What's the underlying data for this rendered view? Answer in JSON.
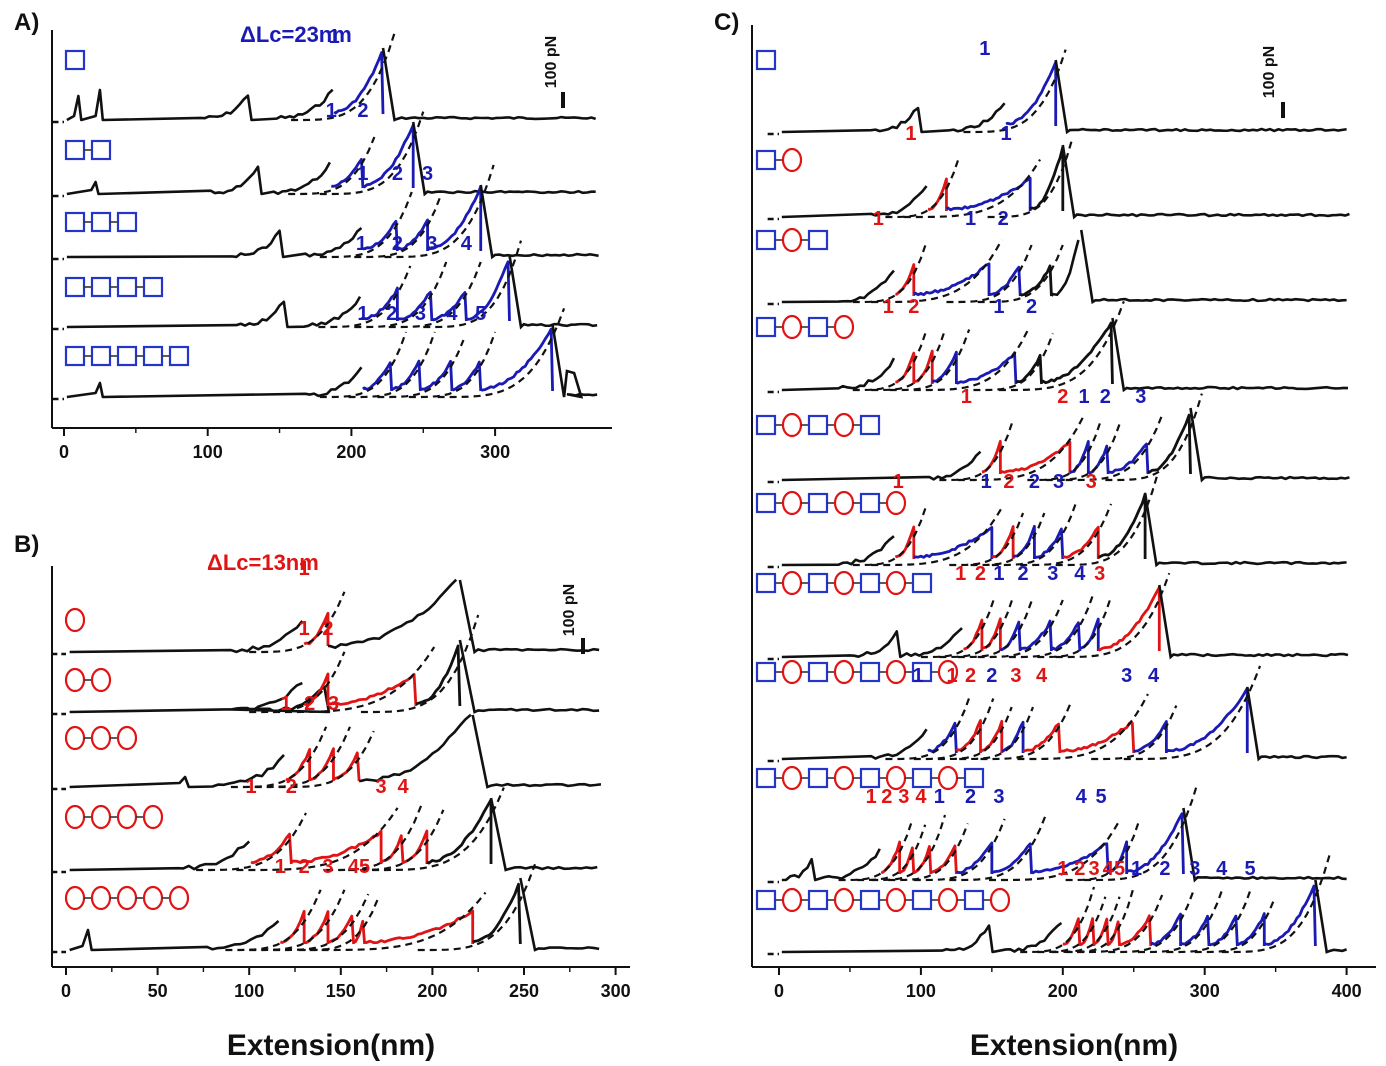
{
  "colors": {
    "trace": "#111111",
    "blue": "#1a1ab4",
    "red": "#e01414",
    "domain_blue": "#2336c8",
    "domain_red": "#e01414"
  },
  "chart_data": [
    {
      "type": "line",
      "panel_label": "A)",
      "annotation": "ΔLc=23nm",
      "annotation_color": "blue",
      "scale_bar_label": "100 pN",
      "xlabel": "",
      "xlim": [
        -5,
        380
      ],
      "xticks": [
        0,
        100,
        200,
        300
      ],
      "series": [
        {
          "constructs": "B",
          "rupture": 222,
          "leading_peaks": [
            {
              "x": 10,
              "h": 22
            },
            {
              "x": 25,
              "h": 28
            }
          ],
          "event_xs": [],
          "peak_xs": [
            130
          ],
          "unfold_xs": [
            188,
            222
          ],
          "colors": [
            "blue"
          ],
          "labels": [
            "1"
          ]
        },
        {
          "constructs": "BB",
          "rupture": 243,
          "leading_peaks": [
            {
              "x": 22,
              "h": 10
            }
          ],
          "event_xs": [],
          "peak_xs": [
            137
          ],
          "unfold_xs": [
            186,
            208,
            243
          ],
          "colors": [
            "blue",
            "blue"
          ],
          "labels": [
            "1",
            "2"
          ]
        },
        {
          "constructs": "BBB",
          "rupture": 290,
          "leading_peaks": [],
          "event_xs": [],
          "peak_xs": [
            152
          ],
          "unfold_xs": [
            208,
            232,
            253,
            290
          ],
          "colors": [
            "blue",
            "blue",
            "blue"
          ],
          "labels": [
            "1",
            "2",
            "3"
          ]
        },
        {
          "constructs": "BBBB",
          "rupture": 310,
          "leading_peaks": [],
          "event_xs": [],
          "peak_xs": [
            155
          ],
          "unfold_xs": [
            207,
            232,
            256,
            280,
            310
          ],
          "colors": [
            "blue",
            "blue",
            "blue",
            "blue"
          ],
          "labels": [
            "1",
            "2",
            "3",
            "4"
          ]
        },
        {
          "constructs": "BBBBB",
          "rupture": 340,
          "leading_peaks": [
            {
              "x": 25,
              "h": 12
            }
          ],
          "event_xs": [],
          "peak_xs": [],
          "unfold_xs": [
            208,
            228,
            248,
            270,
            290,
            340
          ],
          "colors": [
            "blue",
            "blue",
            "blue",
            "blue",
            "blue"
          ],
          "labels": [
            "1",
            "2",
            "3",
            "4",
            "5"
          ],
          "extra_peaks": [
            {
              "x": 355,
              "h": 24
            }
          ]
        }
      ]
    },
    {
      "type": "line",
      "panel_label": "B)",
      "annotation": "ΔLc=13nm",
      "annotation_color": "red",
      "scale_bar_label": "100 pN",
      "xlabel": "Extension(nm)",
      "xlim": [
        -5,
        300
      ],
      "xticks": [
        0,
        50,
        100,
        150,
        200,
        250,
        300
      ],
      "series": [
        {
          "constructs": "R",
          "rupture": 215,
          "leading_peaks": [],
          "event_xs": [],
          "peak_xs": [],
          "unfold_xs": [
            130,
            143
          ],
          "colors": [
            "red"
          ],
          "labels": [
            "1"
          ]
        },
        {
          "constructs": "RR",
          "rupture": 215,
          "leading_peaks": [],
          "event_xs": [],
          "peak_xs": [
            143
          ],
          "unfold_xs": [
            130,
            143
          ],
          "colors": [
            "red"
          ],
          "labels": [
            "1"
          ],
          "late_unfold_xs": [
            191,
            215
          ],
          "late_colors": [
            "red"
          ],
          "late_labels": [
            "2"
          ]
        },
        {
          "constructs": "RRR",
          "rupture": 222,
          "leading_peaks": [
            {
              "x": 65,
              "h": 8
            }
          ],
          "event_xs": [],
          "peak_xs": [],
          "unfold_xs": [
            120,
            133,
            146,
            160
          ],
          "colors": [
            "red",
            "red",
            "red"
          ],
          "labels": [
            "1",
            "2",
            "3"
          ]
        },
        {
          "constructs": "RRRR",
          "rupture": 232,
          "leading_peaks": [],
          "event_xs": [],
          "peak_xs": [],
          "unfold_xs": [
            101,
            123
          ],
          "colors": [
            "red"
          ],
          "labels": [
            "1"
          ],
          "late_unfold_xs": [
            172,
            184,
            197,
            232
          ],
          "late_colors": [
            "red",
            "red",
            "red"
          ],
          "late_labels": [
            "2",
            "3",
            "4"
          ]
        },
        {
          "constructs": "RRRRR",
          "rupture": 248,
          "leading_peaks": [
            {
              "x": 12,
              "h": 18
            }
          ],
          "event_xs": [],
          "peak_xs": [],
          "unfold_xs": [
            117,
            130,
            143,
            157,
            163
          ],
          "colors": [
            "red",
            "red",
            "red",
            "red"
          ],
          "labels": [
            "1",
            "2",
            "3",
            "4"
          ],
          "late_unfold_xs": [
            222,
            248
          ],
          "late_colors": [
            "red"
          ],
          "late_labels": [
            "5"
          ]
        }
      ]
    },
    {
      "type": "line",
      "panel_label": "C)",
      "annotation": "",
      "scale_bar_label": "100 pN",
      "xlabel": "Extension(nm)",
      "xlim": [
        -20,
        410
      ],
      "xticks": [
        0,
        100,
        200,
        300,
        400
      ],
      "series": [
        {
          "constructs": "B",
          "rupture": 195,
          "peak_xs": [
            100
          ],
          "unfold_xs": [
            160,
            195
          ],
          "colors": [
            "blue"
          ],
          "labels": [
            "1"
          ],
          "label_xs": [
            145
          ]
        },
        {
          "constructs": "BR",
          "rupture": 200,
          "peak_xs": [],
          "unfold_xs": [
            105,
            118
          ],
          "colors": [
            "red"
          ],
          "labels": [
            "1"
          ],
          "label_xs": [
            93
          ],
          "late_unfold_xs": [
            177,
            200
          ],
          "late_colors": [
            "blue"
          ],
          "late_labels": [
            "1"
          ],
          "late_label_xs": [
            160
          ]
        },
        {
          "constructs": "BRB",
          "rupture": 213,
          "peak_xs": [],
          "unfold_xs": [
            82,
            95
          ],
          "colors": [
            "red"
          ],
          "labels": [
            "1"
          ],
          "label_xs": [
            70
          ],
          "late_unfold_xs": [
            148,
            170,
            192
          ],
          "late_colors": [
            "blue",
            "blue"
          ],
          "late_labels": [
            "1",
            "2"
          ],
          "late_label_xs": [
            135,
            158
          ]
        },
        {
          "constructs": "BRBR",
          "rupture": 235,
          "peak_xs": [],
          "unfold_xs": [
            82,
            95,
            108,
            125
          ],
          "colors": [
            "red",
            "red"
          ],
          "labels": [
            "1",
            "2"
          ],
          "label_xs": [
            77,
            95
          ],
          "late_unfold_xs": [
            167,
            185,
            235
          ],
          "late_colors": [
            "blue",
            "blue"
          ],
          "late_labels": [
            "1",
            "2"
          ],
          "late_label_xs": [
            155,
            178
          ]
        },
        {
          "constructs": "BRBRB",
          "rupture": 290,
          "peak_xs": [],
          "unfold_xs": [
            143,
            156
          ],
          "colors": [
            "red"
          ],
          "labels": [
            "1"
          ],
          "label_xs": [
            132
          ],
          "late_unfold_xs": [
            205,
            218,
            232,
            260,
            290
          ],
          "late_colors": [
            "red",
            "blue",
            "blue",
            "blue"
          ],
          "late_labels": [
            "2",
            "1",
            "2",
            "3"
          ],
          "late_label_xs": [
            200,
            215,
            230,
            255
          ]
        },
        {
          "constructs": "BRBRBR",
          "rupture": 258,
          "peak_xs": [],
          "unfold_xs": [
            82,
            95
          ],
          "colors": [
            "red"
          ],
          "labels": [
            "1"
          ],
          "label_xs": [
            84
          ],
          "late_unfold_xs": [
            150,
            165,
            180,
            200,
            225,
            258
          ],
          "late_colors": [
            "blue",
            "red",
            "blue",
            "blue",
            "red"
          ],
          "late_labels": [
            "1",
            "2",
            "2",
            "3",
            "3"
          ],
          "late_label_xs": [
            146,
            162,
            180,
            197,
            220
          ]
        },
        {
          "constructs": "BRBRBRB",
          "rupture": 268,
          "peak_xs": [
            85
          ],
          "unfold_xs": [
            130,
            143,
            156,
            170,
            192,
            212,
            225,
            268
          ],
          "colors": [
            "red",
            "red",
            "blue",
            "blue",
            "blue",
            "blue",
            "red"
          ],
          "labels": [
            "1",
            "2",
            "1",
            "2",
            "3",
            "4",
            "3"
          ],
          "label_xs": [
            128,
            142,
            155,
            172,
            193,
            212,
            226
          ]
        },
        {
          "constructs": "BRBRBRBR",
          "rupture": 330,
          "peak_xs": [],
          "unfold_xs": [
            105,
            125,
            142,
            157,
            172,
            198,
            250,
            273,
            330
          ],
          "colors": [
            "blue",
            "red",
            "red",
            "blue",
            "red",
            "red",
            "blue",
            "blue"
          ],
          "labels": [
            "1",
            "1",
            "2",
            "2",
            "3",
            "4",
            "3",
            "4"
          ],
          "label_xs": [
            98,
            122,
            135,
            150,
            167,
            185,
            245,
            264
          ]
        },
        {
          "constructs": "BRBRBRBRB",
          "rupture": 285,
          "peak_xs": [
            25
          ],
          "unfold_xs": [
            72,
            85,
            95,
            107,
            125,
            150,
            178,
            232,
            245,
            285
          ],
          "colors": [
            "red",
            "red",
            "red",
            "red",
            "blue",
            "blue",
            "blue",
            "blue",
            "blue"
          ],
          "labels": [
            "1",
            "2",
            "3",
            "4",
            "1",
            "2",
            "3",
            "4",
            "5"
          ],
          "label_xs": [
            65,
            76,
            88,
            100,
            113,
            135,
            155,
            213,
            227
          ]
        },
        {
          "constructs": "BRBRBRBRBR",
          "rupture": 378,
          "peak_xs": [
            150
          ],
          "unfold_xs": [
            200,
            212,
            222,
            232,
            240,
            262,
            283,
            303,
            323,
            342,
            378
          ],
          "colors": [
            "red",
            "red",
            "red",
            "red",
            "red",
            "blue",
            "blue",
            "blue",
            "blue",
            "blue"
          ],
          "labels": [
            "1",
            "2",
            "3",
            "4",
            "5",
            "1",
            "2",
            "3",
            "4",
            "5"
          ],
          "label_xs": [
            200,
            212,
            222,
            232,
            240,
            252,
            272,
            293,
            312,
            332
          ]
        }
      ]
    }
  ]
}
